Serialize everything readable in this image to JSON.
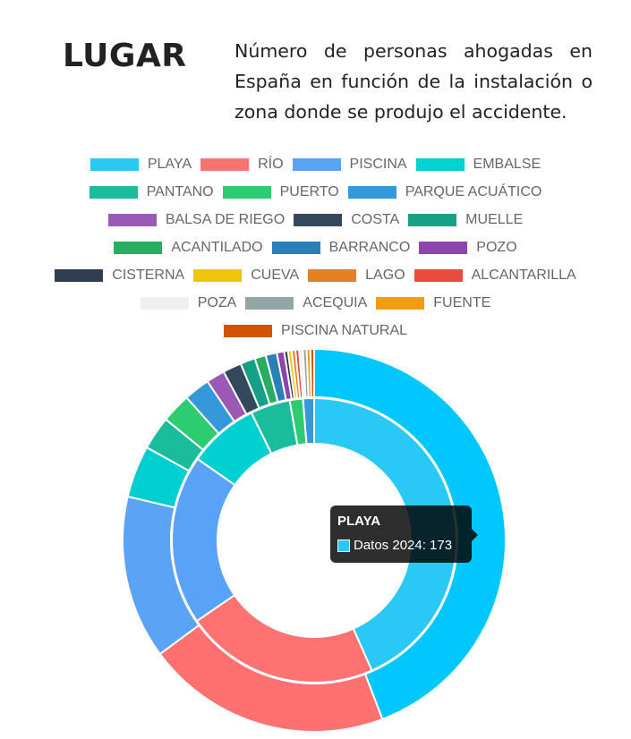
{
  "header": {
    "title": "LUGAR",
    "subtitle": "Número de personas ahogadas en España en función de la instalación o zona donde se produjo el accidente."
  },
  "chart_data": {
    "type": "doughnut",
    "categories": [
      "PLAYA",
      "RÍO",
      "PISCINA",
      "EMBALSE",
      "PANTANO",
      "PUERTO",
      "PARQUE ACUÁTICO",
      "BALSA DE RIEGO",
      "COSTA",
      "MUELLE",
      "ACANTILADO",
      "BARRANCO",
      "POZO",
      "CISTERNA",
      "CUEVA",
      "LAGO",
      "ALCANTARILLA",
      "POZA",
      "ACEQUIA",
      "FUENTE",
      "PISCINA NATURAL"
    ],
    "colors": [
      "#29c8f5",
      "#ff7272",
      "#58a2f7",
      "#00d0d0",
      "#1abc9c",
      "#2ecc71",
      "#3498db",
      "#9b59b6",
      "#34495e",
      "#16a085",
      "#27ae60",
      "#2980b9",
      "#8e44ad",
      "#2c3e50",
      "#f1c40f",
      "#e67e22",
      "#e74c3c",
      "#ecf0f1",
      "#95a5a6",
      "#f39c12",
      "#d35400"
    ],
    "series": [
      {
        "name": "Datos 2024",
        "ring": "inner",
        "values": [
          173,
          88,
          77,
          32,
          18,
          6,
          5,
          0,
          0,
          0,
          0,
          0,
          0,
          0,
          0,
          0,
          0,
          0,
          0,
          0,
          0
        ]
      },
      {
        "ring": "outer",
        "values": [
          141,
          66,
          44,
          14,
          9,
          8,
          7,
          5,
          5,
          4,
          3,
          3,
          2,
          1,
          1,
          1,
          1,
          1,
          1,
          1,
          1
        ],
        "palette": [
          "#00c8ff",
          "#ff7070",
          "#5aa3f5",
          "#00cfd1",
          "#1abc9c",
          "#2ecc71",
          "#3498db",
          "#9b59b6",
          "#34495e",
          "#16a085",
          "#27ae60",
          "#2980b9",
          "#8e44ad",
          "#2c3e50",
          "#f1c40f",
          "#e67e22",
          "#e74c3c",
          "#ecf0f1",
          "#95a5a6",
          "#f39c12",
          "#d35400"
        ]
      }
    ],
    "legend_position": "top",
    "legend_rows": [
      [
        0,
        1,
        2,
        3
      ],
      [
        4,
        5,
        6
      ],
      [
        7,
        8,
        9
      ],
      [
        10,
        11,
        12
      ],
      [
        13,
        14,
        15,
        16
      ],
      [
        17,
        18,
        19
      ],
      [
        20
      ]
    ]
  },
  "tooltip": {
    "title": "PLAYA",
    "label": "Datos 2024: 173",
    "color": "#29c8f5"
  }
}
